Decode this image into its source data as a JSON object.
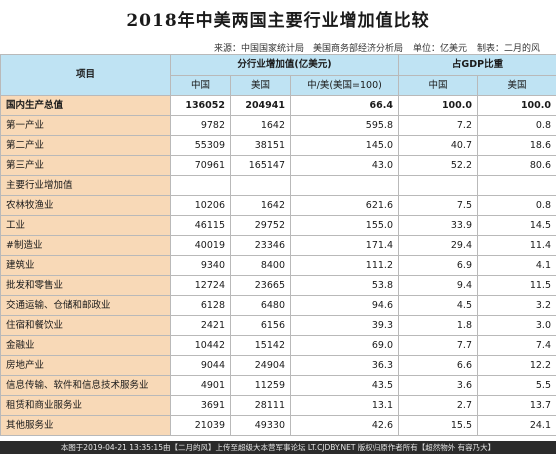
{
  "title": "2018年中美两国主要行业增加值比较",
  "source": {
    "source_label": "来源：中国国家统计局　美国商务部经济分析局",
    "unit_label": "单位：亿美元",
    "author_label": "制表：二月的风"
  },
  "header": {
    "item": "项目",
    "group_value": "分行业增加值(亿美元)",
    "group_share": "占GDP比重",
    "china": "中国",
    "usa": "美国",
    "ratio": "中/美(美国=100)",
    "china2": "中国",
    "usa2": "美国"
  },
  "rows": [
    {
      "label": "国内生产总值",
      "cn": "136052",
      "us": "204941",
      "ratio": "66.4",
      "cn_pct": "100.0",
      "us_pct": "100.0",
      "style": "bold"
    },
    {
      "label": "第一产业",
      "cn": "9782",
      "us": "1642",
      "ratio": "595.8",
      "cn_pct": "7.2",
      "us_pct": "0.8",
      "style": ""
    },
    {
      "label": "第二产业",
      "cn": "55309",
      "us": "38151",
      "ratio": "145.0",
      "cn_pct": "40.7",
      "us_pct": "18.6",
      "style": ""
    },
    {
      "label": "第三产业",
      "cn": "70961",
      "us": "165147",
      "ratio": "43.0",
      "cn_pct": "52.2",
      "us_pct": "80.6",
      "style": ""
    },
    {
      "label": "主要行业增加值",
      "cn": "",
      "us": "",
      "ratio": "",
      "cn_pct": "",
      "us_pct": "",
      "style": "section"
    },
    {
      "label": "农林牧渔业",
      "cn": "10206",
      "us": "1642",
      "ratio": "621.6",
      "cn_pct": "7.5",
      "us_pct": "0.8",
      "style": ""
    },
    {
      "label": "工业",
      "cn": "46115",
      "us": "29752",
      "ratio": "155.0",
      "cn_pct": "33.9",
      "us_pct": "14.5",
      "style": ""
    },
    {
      "label": "  #制造业",
      "cn": "40019",
      "us": "23346",
      "ratio": "171.4",
      "cn_pct": "29.4",
      "us_pct": "11.4",
      "style": ""
    },
    {
      "label": "建筑业",
      "cn": "9340",
      "us": "8400",
      "ratio": "111.2",
      "cn_pct": "6.9",
      "us_pct": "4.1",
      "style": ""
    },
    {
      "label": "批发和零售业",
      "cn": "12724",
      "us": "23665",
      "ratio": "53.8",
      "cn_pct": "9.4",
      "us_pct": "11.5",
      "style": ""
    },
    {
      "label": "交通运输、仓储和邮政业",
      "cn": "6128",
      "us": "6480",
      "ratio": "94.6",
      "cn_pct": "4.5",
      "us_pct": "3.2",
      "style": ""
    },
    {
      "label": "住宿和餐饮业",
      "cn": "2421",
      "us": "6156",
      "ratio": "39.3",
      "cn_pct": "1.8",
      "us_pct": "3.0",
      "style": ""
    },
    {
      "label": "金融业",
      "cn": "10442",
      "us": "15142",
      "ratio": "69.0",
      "cn_pct": "7.7",
      "us_pct": "7.4",
      "style": ""
    },
    {
      "label": "房地产业",
      "cn": "9044",
      "us": "24904",
      "ratio": "36.3",
      "cn_pct": "6.6",
      "us_pct": "12.2",
      "style": ""
    },
    {
      "label": "信息传输、软件和信息技术服务业",
      "cn": "4901",
      "us": "11259",
      "ratio": "43.5",
      "cn_pct": "3.6",
      "us_pct": "5.5",
      "style": ""
    },
    {
      "label": "租赁和商业服务业",
      "cn": "3691",
      "us": "28111",
      "ratio": "13.1",
      "cn_pct": "2.7",
      "us_pct": "13.7",
      "style": ""
    },
    {
      "label": "其他服务业",
      "cn": "21039",
      "us": "49330",
      "ratio": "42.6",
      "cn_pct": "15.5",
      "us_pct": "24.1",
      "style": ""
    }
  ],
  "watermark": "本图于2019-04-21 13:35:15由【二月的风】上传至超级大本营军事论坛 LT.CJDBY.NET 版权归原作者所有【超然物外 有容乃大】"
}
